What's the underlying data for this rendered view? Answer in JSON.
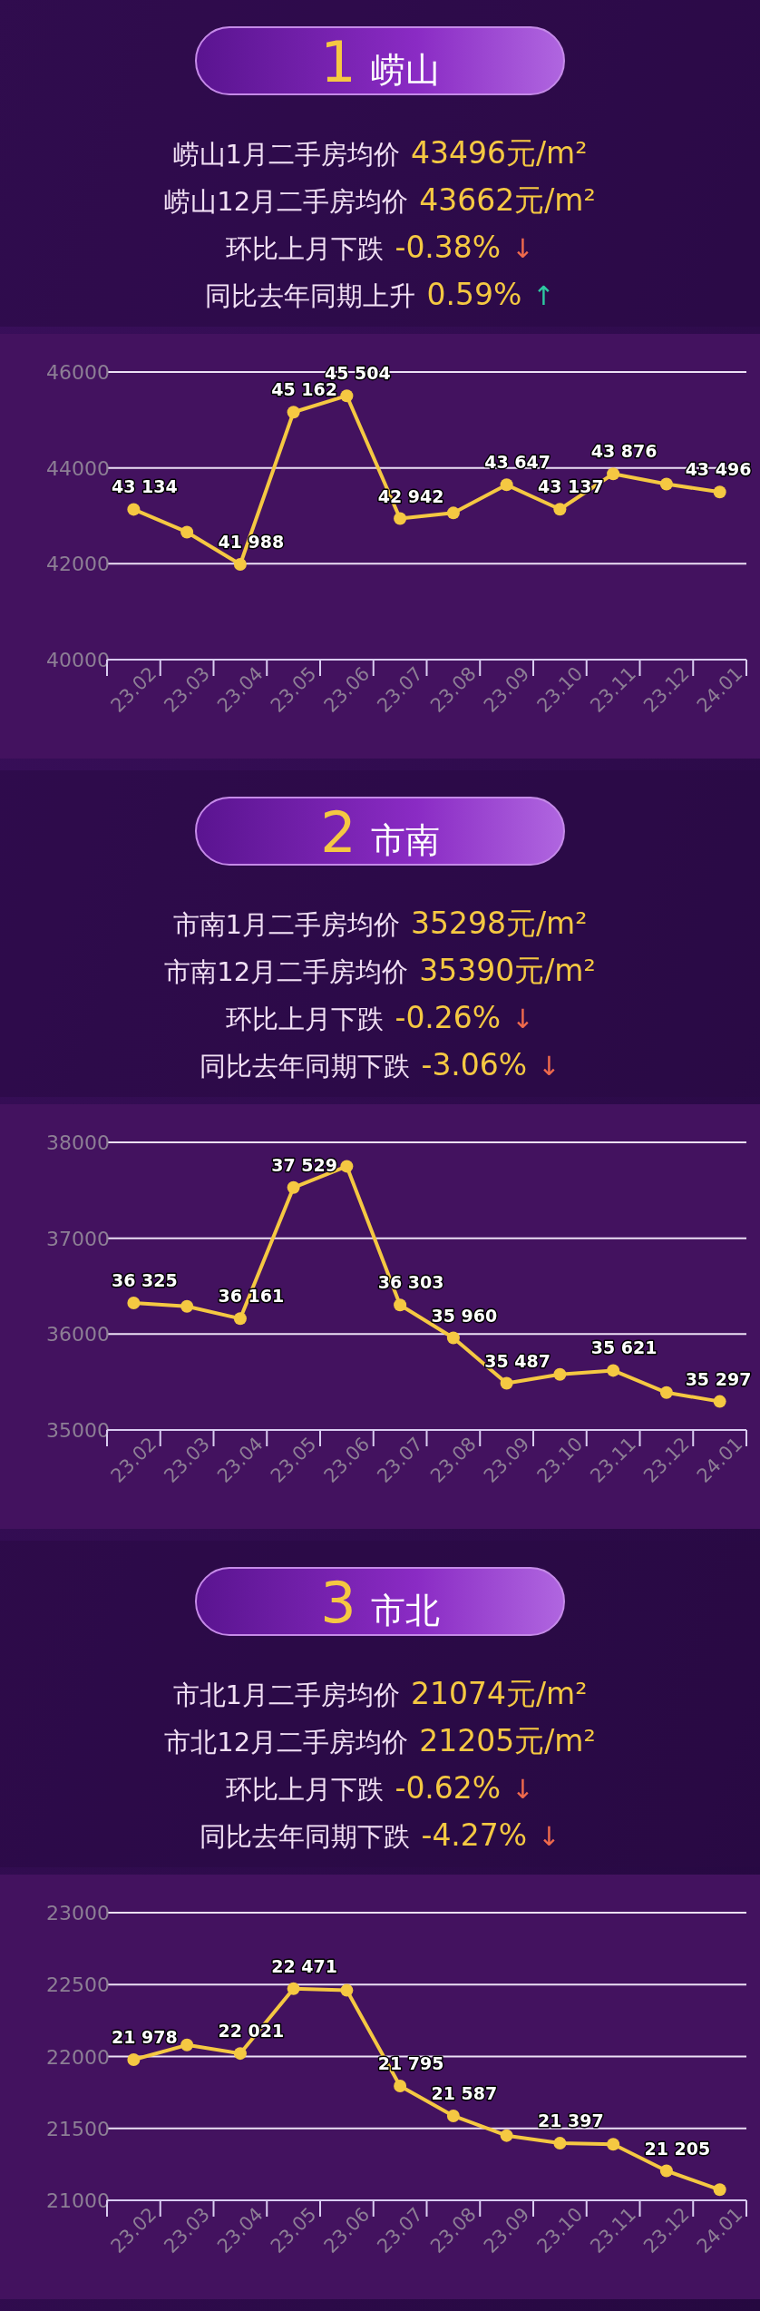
{
  "chart_data": [
    {
      "type": "line",
      "title": "崂山",
      "subtitle": "1",
      "annotations": [
        "崂山1月二手房均价 43496元/m²",
        "崂山12月二手房均价 43662元/m²",
        "环比上月下跌 -0.38% ↓",
        "同比去年同期上升 0.59% ↑"
      ],
      "categories": [
        "23.02",
        "23.03",
        "23.04",
        "23.05",
        "23.06",
        "23.07",
        "23.08",
        "23.09",
        "23.10",
        "23.11",
        "23.12",
        "24.01"
      ],
      "color": "#f5c842",
      "values": [
        43134,
        42660,
        41988,
        45162,
        45504,
        42942,
        43060,
        43647,
        43137,
        43876,
        43662,
        43496
      ],
      "value_labels": [
        "43 134",
        null,
        "41 988",
        "45 162",
        "45 504",
        "42 942",
        null,
        "43 647",
        "43 137",
        "43 876",
        null,
        "43 496"
      ],
      "ylim": [
        40000,
        46000
      ],
      "yticks": [
        40000,
        42000,
        44000,
        46000
      ],
      "grid": "y",
      "marker": "circle"
    },
    {
      "type": "line",
      "title": "市南",
      "subtitle": "2",
      "annotations": [
        "市南1月二手房均价 35298元/m²",
        "市南12月二手房均价 35390元/m²",
        "环比上月下跌 -0.26% ↓",
        "同比去年同期下跌 -3.06% ↓"
      ],
      "categories": [
        "23.02",
        "23.03",
        "23.04",
        "23.05",
        "23.06",
        "23.07",
        "23.08",
        "23.09",
        "23.10",
        "23.11",
        "23.12",
        "24.01"
      ],
      "color": "#f5c842",
      "values": [
        36325,
        36290,
        36161,
        37529,
        37750,
        36303,
        35960,
        35487,
        35580,
        35621,
        35390,
        35297
      ],
      "value_labels": [
        "36 325",
        null,
        "36 161",
        "37 529",
        null,
        "36 303",
        "35 960",
        "35 487",
        null,
        "35 621",
        null,
        "35 297"
      ],
      "ylim": [
        35000,
        38000
      ],
      "yticks": [
        35000,
        36000,
        37000,
        38000
      ],
      "grid": "y",
      "marker": "circle"
    },
    {
      "type": "line",
      "title": "市北",
      "subtitle": "3",
      "annotations": [
        "市北1月二手房均价 21074元/m²",
        "市北12月二手房均价 21205元/m²",
        "环比上月下跌 -0.62% ↓",
        "同比去年同期下跌 -4.27% ↓"
      ],
      "categories": [
        "23.02",
        "23.03",
        "23.04",
        "23.05",
        "23.06",
        "23.07",
        "23.08",
        "23.09",
        "23.10",
        "23.11",
        "23.12",
        "24.01"
      ],
      "color": "#f5c842",
      "values": [
        21978,
        22080,
        22021,
        22471,
        22460,
        21795,
        21587,
        21450,
        21397,
        21390,
        21205,
        21074
      ],
      "value_labels": [
        "21 978",
        null,
        "22 021",
        "22 471",
        null,
        "21 795",
        "21 587",
        null,
        "21 397",
        null,
        "21 205",
        null
      ],
      "ylim": [
        21000,
        23000
      ],
      "yticks": [
        21000,
        21500,
        22000,
        22500,
        23000
      ],
      "grid": "y",
      "marker": "circle"
    }
  ]
}
